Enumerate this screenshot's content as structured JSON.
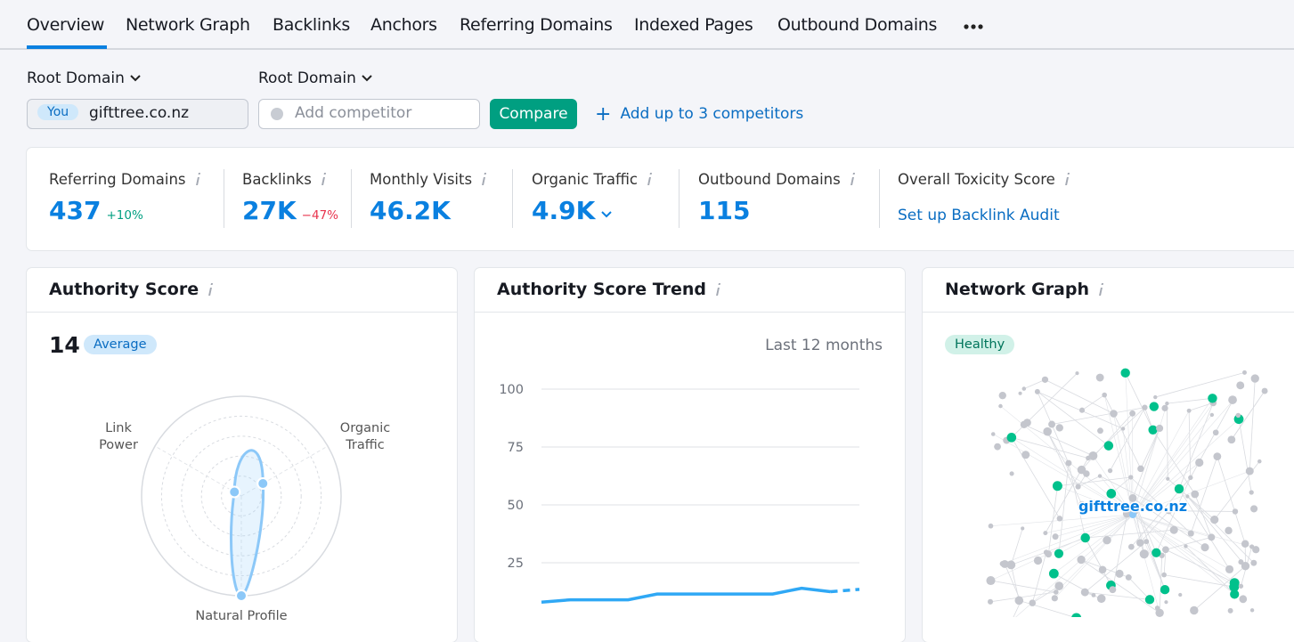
{
  "tabs": [
    "Overview",
    "Network Graph",
    "Backlinks",
    "Anchors",
    "Referring Domains",
    "Indexed Pages",
    "Outbound Domains"
  ],
  "selectors": [
    {
      "label": "Root Domain",
      "badge": "You",
      "value": "gifttree.co.nz"
    },
    {
      "label": "Root Domain",
      "placeholder": "Add competitor"
    }
  ],
  "compare_button": "Compare",
  "add_competitors": "Add up to 3 competitors",
  "metrics": [
    {
      "label": "Referring Domains",
      "value": "437",
      "delta": "+10%"
    },
    {
      "label": "Backlinks",
      "value": "27K",
      "delta": "−47%"
    },
    {
      "label": "Monthly Visits",
      "value": "46.2K"
    },
    {
      "label": "Organic Traffic",
      "value": "4.9K"
    },
    {
      "label": "Outbound Domains",
      "value": "115"
    },
    {
      "label": "Overall Toxicity Score",
      "link": "Set up Backlink Audit"
    }
  ],
  "authority_score": {
    "title": "Authority Score",
    "score": "14",
    "rating": "Average",
    "radar": {
      "axes": [
        "Link Power",
        "Organic Traffic",
        "Natural Profile"
      ],
      "values": [
        8,
        25,
        100
      ],
      "rlim": [
        0,
        100
      ]
    }
  },
  "trend": {
    "title": "Authority Score Trend",
    "period": "Last 12 months",
    "chart_data": {
      "type": "line",
      "color": "#2fa8f5",
      "values": [
        8,
        9,
        9,
        9,
        11.5,
        11.5,
        11.5,
        11.5,
        11.5,
        14,
        12.5,
        13.5
      ],
      "dashed_from": 10,
      "ylim": [
        0,
        100
      ],
      "yticks": [
        25,
        50,
        75,
        100
      ],
      "grid": true
    }
  },
  "network": {
    "title": "Network Graph",
    "status": "Healthy",
    "domain": "gifttree.co.nz"
  }
}
